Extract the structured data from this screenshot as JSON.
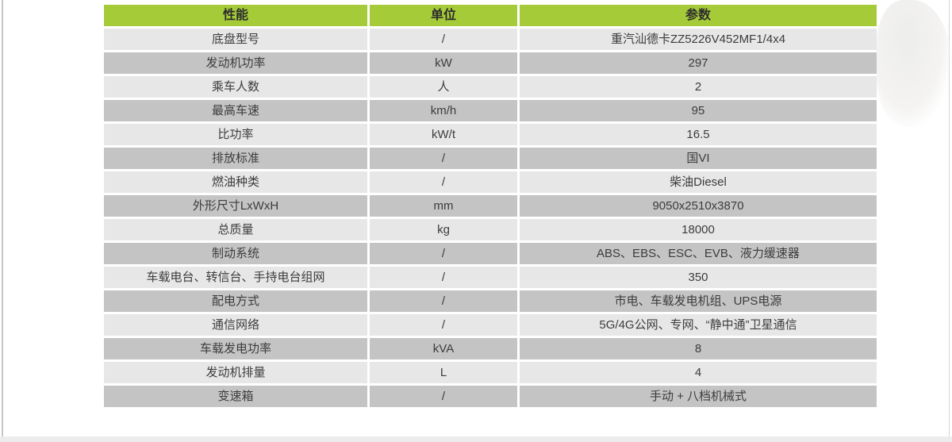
{
  "colors": {
    "header_bg": "#a6cb39",
    "header_text": "#2d2d2d",
    "row_light": "#e8e7e7",
    "row_dark": "#c5c4c4",
    "cell_text": "#3c3c3c",
    "page_bg": "#ffffff"
  },
  "table": {
    "headers": [
      "性能",
      "单位",
      "参数"
    ],
    "rows": [
      [
        "底盘型号",
        "/",
        "重汽汕德卡ZZ5226V452MF1/4x4"
      ],
      [
        "发动机功率",
        "kW",
        "297"
      ],
      [
        "乘车人数",
        "人",
        "2"
      ],
      [
        "最高车速",
        "km/h",
        "95"
      ],
      [
        "比功率",
        "kW/t",
        "16.5"
      ],
      [
        "排放标准",
        "/",
        "国VI"
      ],
      [
        "燃油种类",
        "/",
        "柴油Diesel"
      ],
      [
        "外形尺寸LxWxH",
        "mm",
        "9050x2510x3870"
      ],
      [
        "总质量",
        "kg",
        "18000"
      ],
      [
        "制动系统",
        "/",
        "ABS、EBS、ESC、EVB、液力缓速器"
      ],
      [
        "车载电台、转信台、手持电台组网",
        "/",
        "350"
      ],
      [
        "配电方式",
        "/",
        "市电、车载发电机组、UPS电源"
      ],
      [
        "通信网络",
        "/",
        "5G/4G公网、专网、“静中通”卫星通信"
      ],
      [
        "车载发电功率",
        "kVA",
        "8"
      ],
      [
        "发动机排量",
        "L",
        "4"
      ],
      [
        "变速箱",
        "/",
        "手动 + 八档机械式"
      ]
    ]
  }
}
